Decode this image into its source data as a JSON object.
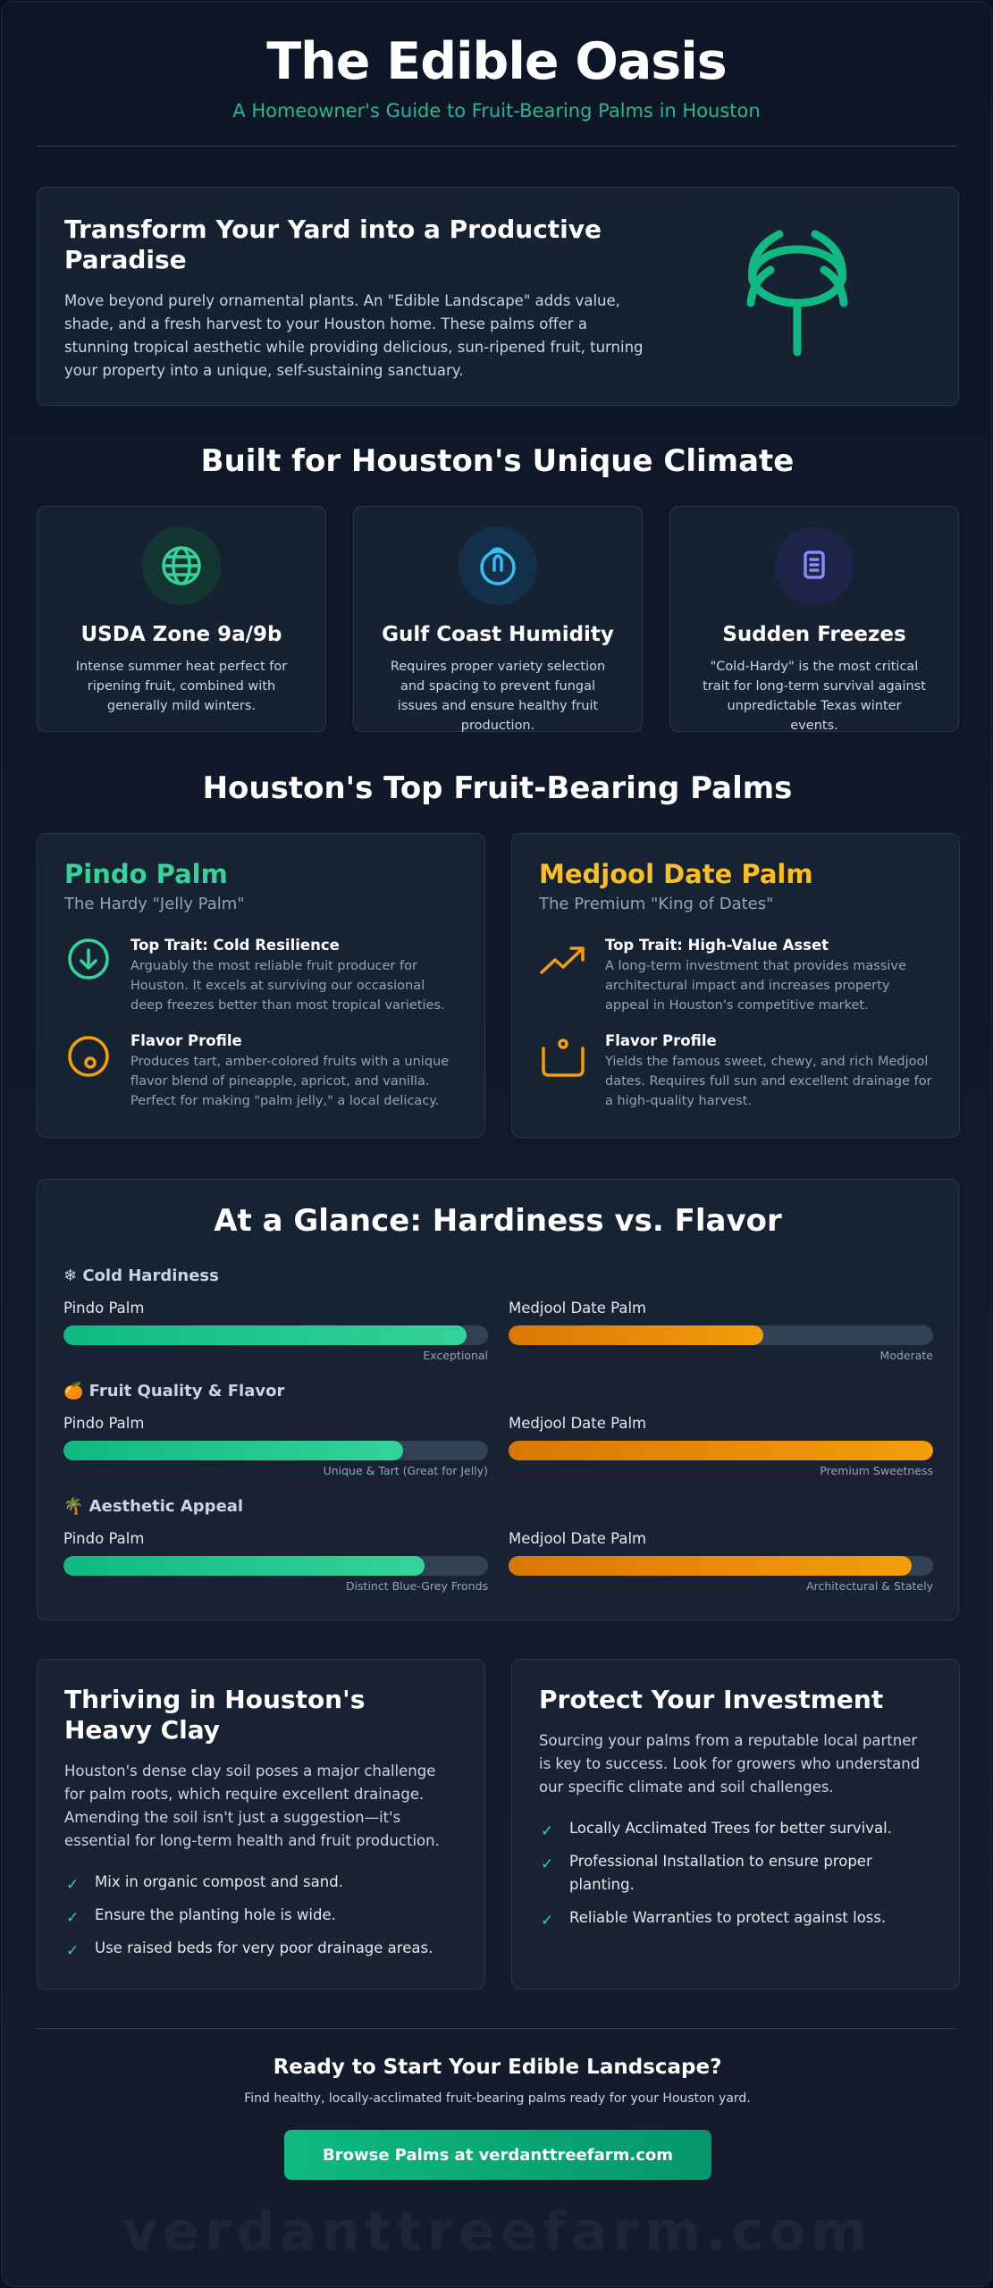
{
  "header": {
    "title": "The Edible Oasis",
    "subtitle": "A Homeowner's Guide to Fruit-Bearing Palms in Houston"
  },
  "intro": {
    "heading": "Transform Your Yard into a Productive Paradise",
    "body": "Move beyond purely ornamental plants. An \"Edible Landscape\" adds value, shade, and a fresh harvest to your Houston home. These palms offer a stunning tropical aesthetic while providing delicious, sun-ripened fruit, turning your property into a unique, self-sustaining sanctuary.",
    "icon": "palm-tree-icon"
  },
  "climate": {
    "title": "Built for Houston's Unique Climate",
    "cards": [
      {
        "title": "USDA Zone 9a/9b",
        "text": "Intense summer heat perfect for ripening fruit, combined with generally mild winters.",
        "icon": "globe-icon",
        "color": "#34d399"
      },
      {
        "title": "Gulf Coast Humidity",
        "text": "Requires proper variety selection and spacing to prevent fungal issues and ensure healthy fruit production.",
        "icon": "water-drop-icon",
        "color": "#38bdf8"
      },
      {
        "title": "Sudden Freezes",
        "text": "\"Cold-Hardy\" is the most critical trait for long-term survival against unpredictable Texas winter events.",
        "icon": "thermometer-icon",
        "color": "#818cf8"
      }
    ]
  },
  "palms": {
    "title": "Houston's Top Fruit-Bearing Palms",
    "cards": [
      {
        "name": "Pindo Palm",
        "tagline": "The Hardy \"Jelly Palm\"",
        "color": "#34d399",
        "traits": [
          {
            "title": "Top Trait: Cold Resilience",
            "text": "Arguably the most reliable fruit producer for Houston. It excels at surviving our occasional deep freezes better than most tropical varieties.",
            "icon": "arrow-down-circle-icon"
          },
          {
            "title": "Flavor Profile",
            "text": "Produces tart, amber-colored fruits with a unique flavor blend of pineapple, apricot, and vanilla. Perfect for making \"palm jelly,\" a local delicacy.",
            "icon": "fruit-icon"
          }
        ]
      },
      {
        "name": "Medjool Date Palm",
        "tagline": "The Premium \"King of Dates\"",
        "color": "#fbbf24",
        "traits": [
          {
            "title": "Top Trait: High-Value Asset",
            "text": "A long-term investment that provides massive architectural impact and increases property appeal in Houston's competitive market.",
            "icon": "trending-up-icon"
          },
          {
            "title": "Flavor Profile",
            "text": "Yields the famous sweet, chewy, and rich Medjool dates. Requires full sun and excellent drainage for a high-quality harvest.",
            "icon": "basket-icon"
          }
        ]
      }
    ]
  },
  "glance": {
    "title": "At a Glance: Hardiness vs. Flavor",
    "metrics": [
      {
        "label": "❄ Cold Hardiness",
        "pindo": {
          "name": "Pindo Palm",
          "value": 0.95,
          "note": "Exceptional"
        },
        "medjool": {
          "name": "Medjool Date Palm",
          "value": 0.6,
          "note": "Moderate"
        }
      },
      {
        "label": "🍊 Fruit Quality & Flavor",
        "pindo": {
          "name": "Pindo Palm",
          "value": 0.8,
          "note": "Unique & Tart (Great for Jelly)"
        },
        "medjool": {
          "name": "Medjool Date Palm",
          "value": 1.0,
          "note": "Premium Sweetness"
        }
      },
      {
        "label": "🌴 Aesthetic Appeal",
        "pindo": {
          "name": "Pindo Palm",
          "value": 0.85,
          "note": "Distinct Blue-Grey Fronds"
        },
        "medjool": {
          "name": "Medjool Date Palm",
          "value": 0.95,
          "note": "Architectural & Stately"
        }
      }
    ]
  },
  "clay": {
    "title": "Thriving in Houston's Heavy Clay",
    "body": "Houston's dense clay soil poses a major challenge for palm roots, which require excellent drainage. Amending the soil isn't just a suggestion—it's essential for long-term health and fruit production.",
    "items": [
      "Mix in organic compost and sand.",
      "Ensure the planting hole is wide.",
      "Use raised beds for very poor drainage areas."
    ]
  },
  "protect": {
    "title": "Protect Your Investment",
    "body": "Sourcing your palms from a reputable local partner is key to success. Look for growers who understand our specific climate and soil challenges.",
    "items": [
      "Locally Acclimated Trees for better survival.",
      "Professional Installation to ensure proper planting.",
      "Reliable Warranties to protect against loss."
    ]
  },
  "cta": {
    "title": "Ready to Start Your Edible Landscape?",
    "subtitle": "Find healthy, locally-acclimated fruit-bearing palms ready for your Houston yard.",
    "button": "Browse Palms at verdanttreefarm.com"
  },
  "watermark": "verdanttreefarm.com"
}
